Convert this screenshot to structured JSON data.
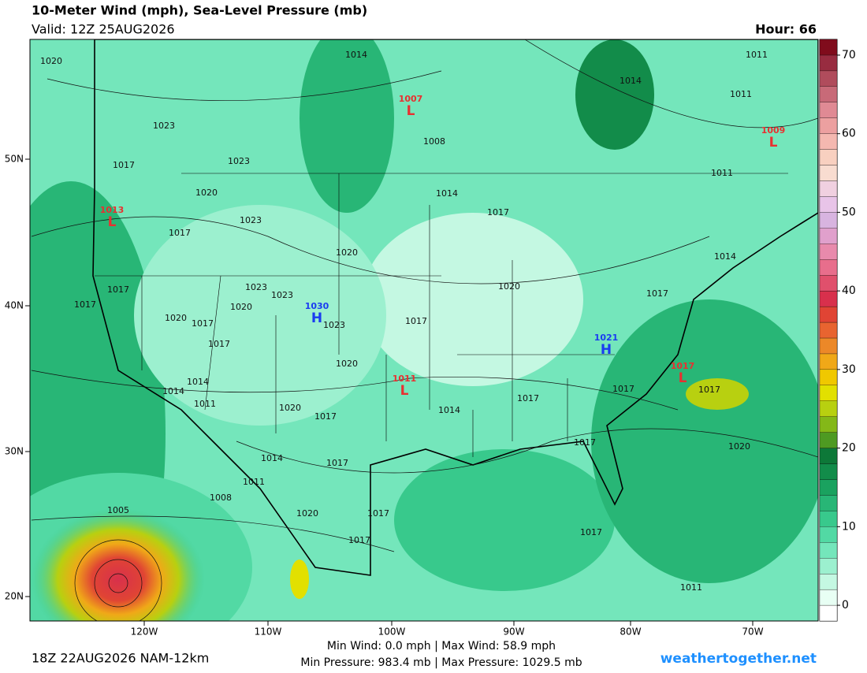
{
  "header": {
    "title": "10-Meter Wind (mph), Sea-Level Pressure (mb)",
    "valid": "Valid: 12Z 25AUG2026",
    "hour": "Hour: 66"
  },
  "map": {
    "lat_labels": [
      "50N",
      "40N",
      "30N",
      "20N"
    ],
    "lon_labels": [
      "120W",
      "110W",
      "100W",
      "90W",
      "80W",
      "70W"
    ],
    "isobar_labels": [
      "1020",
      "1014",
      "1011",
      "1014",
      "1011",
      "1023",
      "1017",
      "1023",
      "1020",
      "1008",
      "1014",
      "1017",
      "1011",
      "1017",
      "1023",
      "1020",
      "1014",
      "1017",
      "1023",
      "1023",
      "1020",
      "1020",
      "1017",
      "1020",
      "1017",
      "1017",
      "1023",
      "1017",
      "1014",
      "1014",
      "1011",
      "1020",
      "1017",
      "1014",
      "1017",
      "1017",
      "1017",
      "1017",
      "1017",
      "1020",
      "1014",
      "1017",
      "1011",
      "1008",
      "1020",
      "1020",
      "1017",
      "1017",
      "1017",
      "1011",
      "1005"
    ],
    "pressure_centers": [
      {
        "letter": "L",
        "value": "1007"
      },
      {
        "letter": "L",
        "value": "1009"
      },
      {
        "letter": "L",
        "value": "1013"
      },
      {
        "letter": "H",
        "value": "1030"
      },
      {
        "letter": "H",
        "value": "1021"
      },
      {
        "letter": "L",
        "value": "1011"
      },
      {
        "letter": "L",
        "value": "1017"
      }
    ]
  },
  "colorbar": {
    "range": [
      -2,
      72
    ],
    "ticks": [
      0,
      10,
      20,
      30,
      40,
      50,
      60,
      70
    ],
    "colors": [
      "#ffffff",
      "#e8fff4",
      "#c4f8e2",
      "#9cf0cf",
      "#74e6bb",
      "#52d9a4",
      "#38c98c",
      "#28b676",
      "#1aa25f",
      "#128c4a",
      "#0d7838",
      "#4e9a22",
      "#84b818",
      "#b8d010",
      "#e2e000",
      "#f0c800",
      "#f0a818",
      "#ec8828",
      "#e86430",
      "#e04434",
      "#d8304c",
      "#e0506c",
      "#e86e8c",
      "#e88aac",
      "#e0a0cc",
      "#d8b4e0",
      "#e8c4e8",
      "#f0d0e0",
      "#f8dcd0",
      "#f8d0c0",
      "#f4b8b0",
      "#eca0a0",
      "#e08a94",
      "#c86a78",
      "#b04c5c",
      "#982c40",
      "#800c1c"
    ]
  },
  "footer": {
    "run": "18Z 22AUG2026 NAM-12km",
    "wind": "Min Wind:   0.0 mph | Max Wind:  58.9 mph",
    "pressure": "Min Pressure: 983.4 mb | Max Pressure: 1029.5 mb",
    "site": "weathertogether.net"
  }
}
